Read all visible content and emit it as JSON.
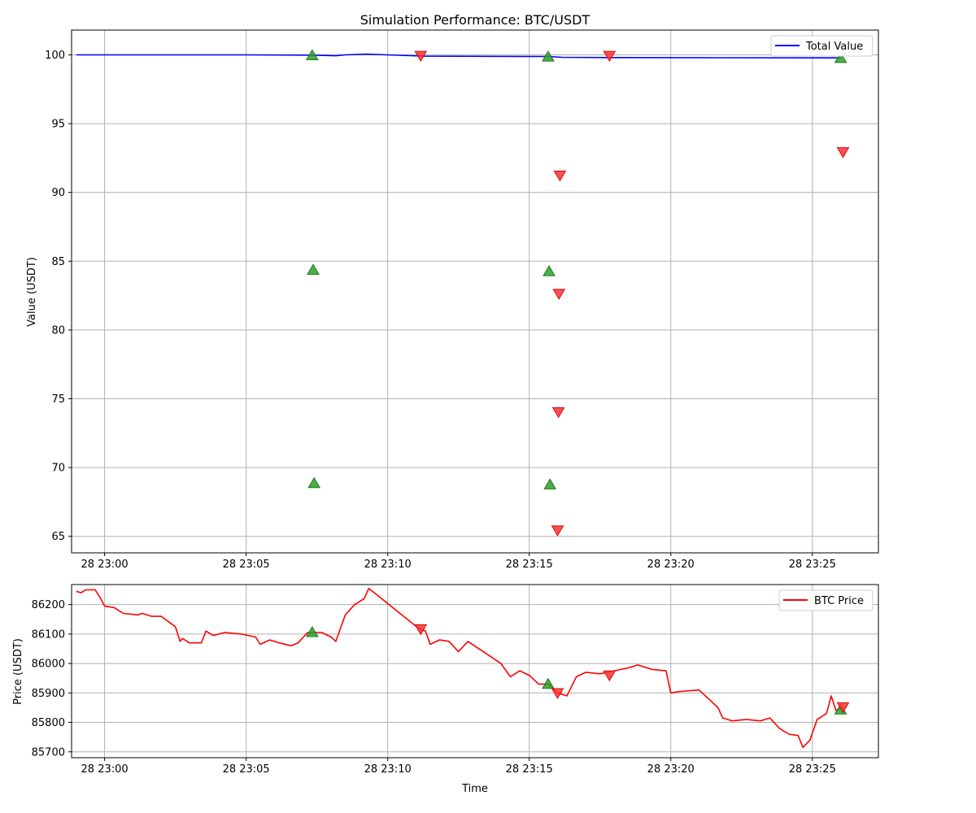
{
  "figure": {
    "title": "Simulation Performance: BTC/USDT"
  },
  "chart_data": [
    {
      "type": "line",
      "title": "Simulation Performance: BTC/USDT",
      "xlabel": "",
      "ylabel": "Value (USDT)",
      "xlim": [
        "22:58:50",
        "23:27:20"
      ],
      "ylim": [
        63.8,
        101.8
      ],
      "x_ticks": [
        "28 23:00",
        "28 23:05",
        "28 23:10",
        "28 23:15",
        "28 23:20",
        "28 23:25"
      ],
      "y_ticks": [
        65,
        70,
        75,
        80,
        85,
        90,
        95,
        100
      ],
      "grid": true,
      "legend": "top-right",
      "series": [
        {
          "name": "Total Value",
          "color": "#0000ff",
          "points": [
            [
              "22:59:00",
              100.0
            ],
            [
              "23:05:00",
              100.0
            ],
            [
              "23:07:20",
              99.98
            ],
            [
              "23:08:10",
              99.93
            ],
            [
              "23:08:30",
              100.0
            ],
            [
              "23:09:15",
              100.05
            ],
            [
              "23:10:00",
              100.0
            ],
            [
              "23:11:20",
              99.9
            ],
            [
              "23:15:40",
              99.88
            ],
            [
              "23:16:10",
              99.82
            ],
            [
              "23:17:50",
              99.8
            ],
            [
              "23:26:00",
              99.78
            ]
          ]
        }
      ],
      "buy_markers": {
        "color": "#2ca02c",
        "points": [
          [
            "23:07:20",
            100.0
          ],
          [
            "23:07:22",
            84.4
          ],
          [
            "23:07:24",
            68.9
          ],
          [
            "23:15:40",
            99.9
          ],
          [
            "23:15:42",
            84.3
          ],
          [
            "23:15:44",
            68.8
          ],
          [
            "23:26:00",
            99.8
          ]
        ]
      },
      "sell_markers": {
        "color": "#ff3030",
        "points": [
          [
            "23:11:10",
            99.9
          ],
          [
            "23:16:05",
            91.2
          ],
          [
            "23:16:03",
            82.6
          ],
          [
            "23:16:02",
            74.0
          ],
          [
            "23:16:00",
            65.4
          ],
          [
            "23:17:50",
            99.9
          ],
          [
            "23:26:05",
            92.9
          ]
        ]
      }
    },
    {
      "type": "line",
      "title": "",
      "xlabel": "Time",
      "ylabel": "Price (USDT)",
      "xlim": [
        "22:58:50",
        "23:27:20"
      ],
      "ylim": [
        85680,
        86268
      ],
      "x_ticks": [
        "28 23:00",
        "28 23:05",
        "28 23:10",
        "28 23:15",
        "28 23:20",
        "28 23:25"
      ],
      "y_ticks": [
        85700,
        85800,
        85900,
        86000,
        86100,
        86200
      ],
      "grid": true,
      "legend": "top-right",
      "series": [
        {
          "name": "BTC Price",
          "color": "#ff0000",
          "points": [
            [
              "22:59:00",
              86245
            ],
            [
              "22:59:10",
              86240
            ],
            [
              "22:59:20",
              86250
            ],
            [
              "22:59:40",
              86250
            ],
            [
              "22:59:50",
              86225
            ],
            [
              "23:00:00",
              86195
            ],
            [
              "23:00:20",
              86190
            ],
            [
              "23:00:40",
              86170
            ],
            [
              "23:01:10",
              86165
            ],
            [
              "23:01:20",
              86170
            ],
            [
              "23:01:40",
              86160
            ],
            [
              "23:02:00",
              86160
            ],
            [
              "23:02:30",
              86125
            ],
            [
              "23:02:40",
              86075
            ],
            [
              "23:02:45",
              86085
            ],
            [
              "23:03:00",
              86070
            ],
            [
              "23:03:25",
              86070
            ],
            [
              "23:03:35",
              86110
            ],
            [
              "23:03:50",
              86095
            ],
            [
              "23:04:15",
              86105
            ],
            [
              "23:04:50",
              86100
            ],
            [
              "23:05:20",
              86090
            ],
            [
              "23:05:30",
              86065
            ],
            [
              "23:05:50",
              86080
            ],
            [
              "23:06:10",
              86070
            ],
            [
              "23:06:35",
              86060
            ],
            [
              "23:06:50",
              86070
            ],
            [
              "23:07:10",
              86105
            ],
            [
              "23:07:40",
              86105
            ],
            [
              "23:08:00",
              86090
            ],
            [
              "23:08:10",
              86075
            ],
            [
              "23:08:30",
              86165
            ],
            [
              "23:08:50",
              86200
            ],
            [
              "23:09:10",
              86220
            ],
            [
              "23:09:20",
              86255
            ],
            [
              "23:11:05",
              86120
            ],
            [
              "23:11:20",
              86110
            ],
            [
              "23:11:30",
              86065
            ],
            [
              "23:11:50",
              86080
            ],
            [
              "23:12:10",
              86075
            ],
            [
              "23:12:30",
              86040
            ],
            [
              "23:12:50",
              86075
            ],
            [
              "23:14:00",
              86000
            ],
            [
              "23:14:20",
              85955
            ],
            [
              "23:14:40",
              85975
            ],
            [
              "23:15:00",
              85960
            ],
            [
              "23:15:20",
              85930
            ],
            [
              "23:15:40",
              85930
            ],
            [
              "23:16:00",
              85900
            ],
            [
              "23:16:20",
              85890
            ],
            [
              "23:16:40",
              85955
            ],
            [
              "23:17:00",
              85970
            ],
            [
              "23:17:30",
              85965
            ],
            [
              "23:18:00",
              85975
            ],
            [
              "23:18:30",
              85985
            ],
            [
              "23:18:50",
              85995
            ],
            [
              "23:19:20",
              85980
            ],
            [
              "23:19:50",
              85975
            ],
            [
              "23:20:00",
              85900
            ],
            [
              "23:20:20",
              85905
            ],
            [
              "23:21:00",
              85910
            ],
            [
              "23:21:20",
              85880
            ],
            [
              "23:21:40",
              85850
            ],
            [
              "23:21:50",
              85815
            ],
            [
              "23:22:10",
              85805
            ],
            [
              "23:22:40",
              85810
            ],
            [
              "23:23:10",
              85805
            ],
            [
              "23:23:30",
              85815
            ],
            [
              "23:23:50",
              85780
            ],
            [
              "23:24:10",
              85760
            ],
            [
              "23:24:30",
              85755
            ],
            [
              "23:24:40",
              85715
            ],
            [
              "23:24:55",
              85740
            ],
            [
              "23:25:10",
              85810
            ],
            [
              "23:25:30",
              85830
            ],
            [
              "23:25:40",
              85890
            ],
            [
              "23:25:50",
              85840
            ],
            [
              "23:26:00",
              85850
            ]
          ]
        }
      ],
      "buy_markers": {
        "color": "#2ca02c",
        "points": [
          [
            "23:07:20",
            86108
          ],
          [
            "23:15:40",
            85932
          ],
          [
            "23:26:00",
            85845
          ]
        ]
      },
      "sell_markers": {
        "color": "#ff3030",
        "points": [
          [
            "23:11:10",
            86115
          ],
          [
            "23:16:00",
            85898
          ],
          [
            "23:17:50",
            85958
          ],
          [
            "23:26:05",
            85850
          ]
        ]
      }
    }
  ]
}
